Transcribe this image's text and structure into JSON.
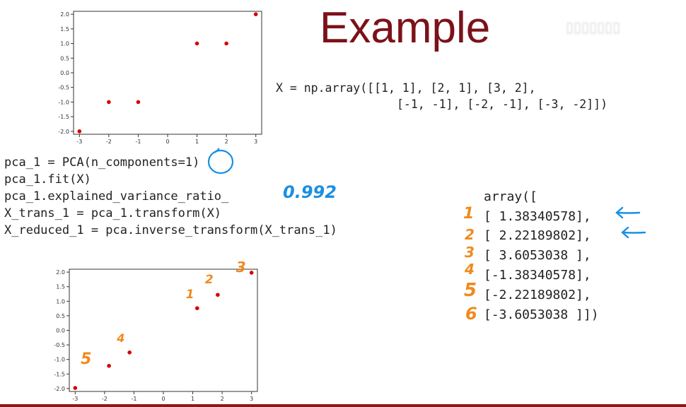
{
  "slide": {
    "title": "Example",
    "np_array_line1": "X = np.array([[1, 1], [2, 1], [3, 2],",
    "np_array_line2": "[-1, -1], [-2, -1], [-3, -2]])",
    "code_lines": [
      "pca_1 = PCA(n_components=1)",
      "pca_1.fit(X)",
      "pca_1.explained_variance_ratio_",
      "X_trans_1 = pca_1.transform(X)",
      "X_reduced_1 = pca.inverse_transform(X_trans_1)"
    ],
    "variance_annotation": "0.992",
    "array_header": "array([",
    "array_rows": [
      "[ 1.38340578],",
      "[ 2.22189802],",
      "[ 3.6053038 ],",
      "[-1.38340578],",
      "[-2.22189802],",
      "[-3.6053038 ]])"
    ],
    "row_numbers": [
      "1",
      "2",
      "3",
      "4",
      "5",
      "6"
    ],
    "colors": {
      "title": "#7b1219",
      "points": "#d40000",
      "orange_ink": "#f08a1e",
      "blue_ink": "#1a8fe3"
    }
  },
  "chart_data": [
    {
      "type": "scatter",
      "title": "",
      "xlabel": "",
      "ylabel": "",
      "xlim": [
        -3.2,
        3.2
      ],
      "ylim": [
        -2.1,
        2.1
      ],
      "xticks": [
        -3,
        -2,
        -1,
        0,
        1,
        2,
        3
      ],
      "yticks": [
        -2.0,
        -1.5,
        -1.0,
        -0.5,
        0.0,
        0.5,
        1.0,
        1.5,
        2.0
      ],
      "tick_labels_x": [
        "-3",
        "-2",
        "-1",
        "0",
        "1",
        "2",
        "3"
      ],
      "tick_labels_y": [
        "-2.0",
        "-1.5",
        "-1.0",
        "-0.5",
        "0.0",
        "0.5",
        "1.0",
        "1.5",
        "2.0"
      ],
      "points": [
        {
          "x": 1,
          "y": 1
        },
        {
          "x": 2,
          "y": 1
        },
        {
          "x": 3,
          "y": 2
        },
        {
          "x": -1,
          "y": -1
        },
        {
          "x": -2,
          "y": -1
        },
        {
          "x": -3,
          "y": -2
        }
      ],
      "grid": false
    },
    {
      "type": "scatter",
      "title": "",
      "xlabel": "",
      "ylabel": "",
      "xlim": [
        -3.2,
        3.2
      ],
      "ylim": [
        -2.1,
        2.1
      ],
      "xticks": [
        -3,
        -2,
        -1,
        0,
        1,
        2,
        3
      ],
      "yticks": [
        -2.0,
        -1.5,
        -1.0,
        -0.5,
        0.0,
        0.5,
        1.0,
        1.5,
        2.0
      ],
      "tick_labels_x": [
        "-3",
        "-2",
        "-1",
        "0",
        "1",
        "2",
        "3"
      ],
      "tick_labels_y": [
        "-2.0",
        "-1.5",
        "-1.0",
        "-0.5",
        "0.0",
        "0.5",
        "1.0",
        "1.5",
        "2.0"
      ],
      "points": [
        {
          "x": 1.15,
          "y": 0.76,
          "label": "1"
        },
        {
          "x": 1.85,
          "y": 1.22,
          "label": "2"
        },
        {
          "x": 3.0,
          "y": 1.98,
          "label": "3"
        },
        {
          "x": -1.15,
          "y": -0.76,
          "label": "4"
        },
        {
          "x": -1.85,
          "y": -1.22,
          "label": "5"
        },
        {
          "x": -3.0,
          "y": -1.98,
          "label": ""
        }
      ],
      "grid": false
    }
  ]
}
